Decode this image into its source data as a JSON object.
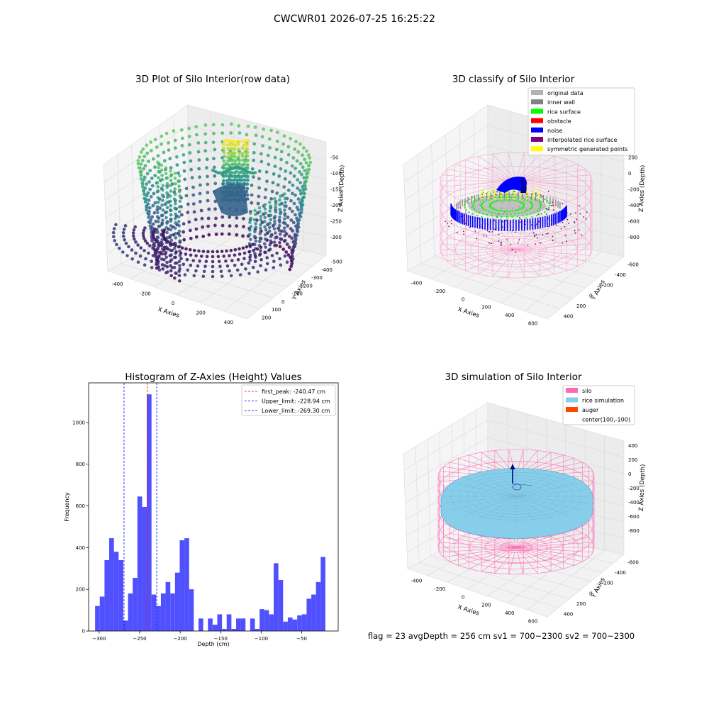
{
  "figure": {
    "suptitle": "CWCWR01 2026-07-25 16:25:22",
    "footer": "flag = 23  avgDepth = 256 cm  sv1 = 700~2300  sv2 = 700~2300"
  },
  "chart_data": [
    {
      "type": "scatter3d",
      "title": "3D Plot of Silo Interior(row data)",
      "xlabel": "X Axies",
      "ylabel": "Y Axies",
      "zlabel": "Z Axies (Depth)",
      "x_ticks": [
        "-400",
        "-200",
        "0",
        "200",
        "400"
      ],
      "y_ticks": [
        "-500",
        "-400",
        "-300",
        "-200",
        "-100",
        "0",
        "100",
        "200"
      ],
      "z_ticks": [
        "-300",
        "-250",
        "-200",
        "-150",
        "-100",
        "-50"
      ],
      "xlim": [
        -500,
        500
      ],
      "ylim": [
        -550,
        250
      ],
      "zlim": [
        -320,
        -20
      ],
      "colormap": "viridis"
    },
    {
      "type": "scatter3d",
      "title": "3D classify of Silo Interior",
      "xlabel": "X Axies",
      "ylabel": "Y Axies",
      "zlabel": "Z Axies (Depth)",
      "x_ticks": [
        "-400",
        "-200",
        "0",
        "200",
        "400",
        "600"
      ],
      "y_ticks": [
        "-600",
        "-400",
        "-200",
        "0",
        "200",
        "400"
      ],
      "z_ticks": [
        "-800",
        "-600",
        "-400",
        "-200",
        "0",
        "200"
      ],
      "xlim": [
        -500,
        700
      ],
      "ylim": [
        -700,
        500
      ],
      "zlim": [
        -900,
        300
      ],
      "legend_position": "top-right",
      "legend": [
        {
          "label": "original data",
          "color": "#b3b3b3"
        },
        {
          "label": "inner wall",
          "color": "#808080"
        },
        {
          "label": "rice surface",
          "color": "#00ff00"
        },
        {
          "label": "obstacle",
          "color": "#ff0000"
        },
        {
          "label": "noise",
          "color": "#0000ff"
        },
        {
          "label": "interpolated rice surface",
          "color": "#800080"
        },
        {
          "label": "symmetric generated points",
          "color": "#ffff00"
        }
      ],
      "wireframe_color": "#ff99cc"
    },
    {
      "type": "histogram",
      "title": "Histogram of Z-Axies (Height) Values",
      "xlabel": "Depth (cm)",
      "ylabel": "Frequency",
      "x_ticks": [
        -300,
        -250,
        -200,
        -150,
        -100,
        -50
      ],
      "y_ticks": [
        0,
        200,
        400,
        600,
        800,
        1000
      ],
      "xlim": [
        -313,
        -5
      ],
      "ylim": [
        0,
        1190
      ],
      "bar_color": "#5050ff",
      "bin_start": -305,
      "bin_width": 5.8,
      "values": [
        120,
        165,
        340,
        445,
        380,
        340,
        50,
        180,
        255,
        645,
        595,
        1135,
        175,
        120,
        180,
        235,
        180,
        280,
        435,
        445,
        200,
        0,
        60,
        0,
        60,
        30,
        80,
        10,
        80,
        10,
        60,
        60,
        0,
        60,
        10,
        105,
        100,
        80,
        325,
        245,
        45,
        65,
        55,
        75,
        80,
        155,
        175,
        235,
        355
      ],
      "vlines": [
        {
          "label": "first_peak: -240.47 cm",
          "x": -240.47,
          "color": "#ff0000"
        },
        {
          "label": "Upper_limit: -228.94 cm",
          "x": -228.94,
          "color": "#0000ff"
        },
        {
          "label": "Lower_limit: -269.30 cm",
          "x": -269.3,
          "color": "#0000ff"
        }
      ],
      "legend_position": "top-right"
    },
    {
      "type": "surface3d",
      "title": "3D simulation of Silo Interior",
      "xlabel": "X Axies",
      "ylabel": "Y Axies",
      "zlabel": "Z Axies (Depth)",
      "x_ticks": [
        "-400",
        "-200",
        "0",
        "200",
        "400",
        "600"
      ],
      "y_ticks": [
        "-600",
        "-400",
        "-200",
        "0",
        "200",
        "400"
      ],
      "z_ticks": [
        "-800",
        "-600",
        "-400",
        "-200",
        "0",
        "200",
        "400"
      ],
      "xlim": [
        -500,
        700
      ],
      "ylim": [
        -700,
        500
      ],
      "zlim": [
        -900,
        500
      ],
      "legend_position": "top-right",
      "legend": [
        {
          "label": "silo",
          "color": "#ff69b4"
        },
        {
          "label": "rice simulation",
          "color": "#87ceeb"
        },
        {
          "label": "auger",
          "color": "#ff4500"
        },
        {
          "label": "center(100,-100)",
          "color": ""
        }
      ]
    }
  ]
}
